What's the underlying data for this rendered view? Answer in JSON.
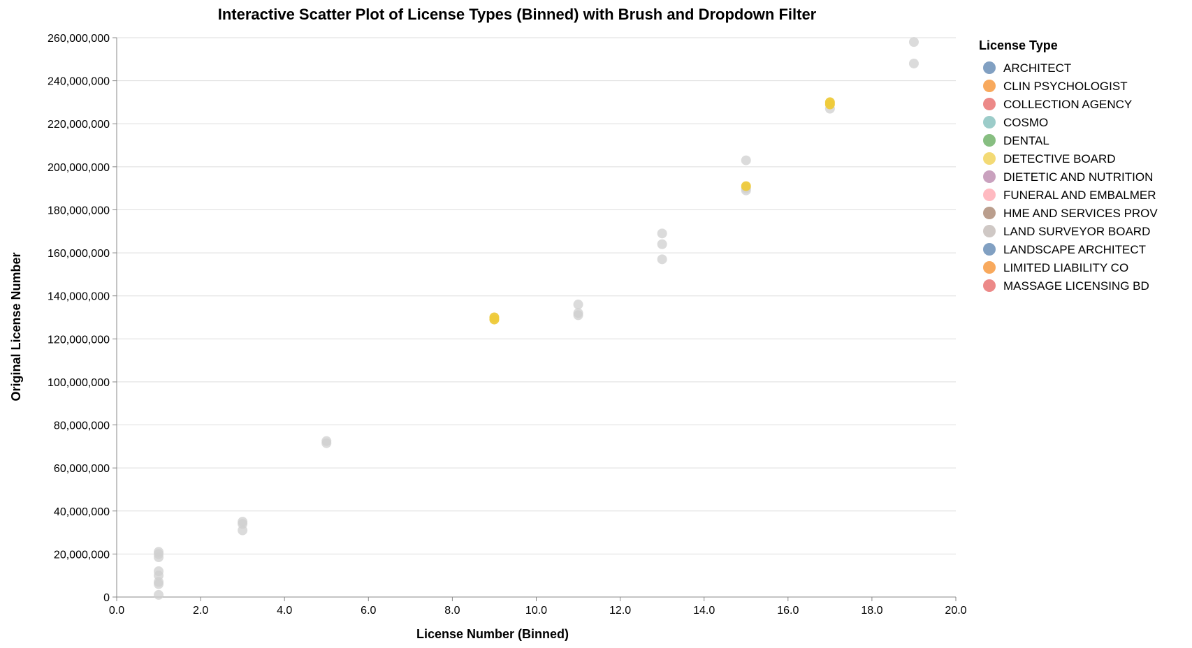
{
  "chart_data": {
    "type": "scatter",
    "title": "Interactive Scatter Plot of License Types (Binned) with Brush and Dropdown Filter",
    "xlabel": "License Number (Binned)",
    "ylabel": "Original License Number",
    "xlim": [
      0,
      20
    ],
    "ylim": [
      0,
      260000000
    ],
    "x_ticks": [
      "0.0",
      "2.0",
      "4.0",
      "6.0",
      "8.0",
      "10.0",
      "12.0",
      "14.0",
      "16.0",
      "18.0",
      "20.0"
    ],
    "y_ticks": [
      "0",
      "20,000,000",
      "40,000,000",
      "60,000,000",
      "80,000,000",
      "100,000,000",
      "120,000,000",
      "140,000,000",
      "160,000,000",
      "180,000,000",
      "200,000,000",
      "220,000,000",
      "240,000,000",
      "260,000,000"
    ],
    "grid": true,
    "legend": {
      "title": "License Type",
      "placement": "right",
      "entries": [
        {
          "label": "ARCHITECT",
          "color": "#4c78a8"
        },
        {
          "label": "CLIN PSYCHOLOGIST",
          "color": "#f58518"
        },
        {
          "label": "COLLECTION AGENCY",
          "color": "#e45756"
        },
        {
          "label": "COSMO",
          "color": "#72b7b2"
        },
        {
          "label": "DENTAL",
          "color": "#54a24b"
        },
        {
          "label": "DETECTIVE BOARD",
          "color": "#eeca3b"
        },
        {
          "label": "DIETETIC AND NUTRITION",
          "color": "#b279a2"
        },
        {
          "label": "FUNERAL AND EMBALMER",
          "color": "#ff9da6"
        },
        {
          "label": "HME AND SERVICES PROV",
          "color": "#9d755d"
        },
        {
          "label": "LAND SURVEYOR BOARD",
          "color": "#bab0ac"
        },
        {
          "label": "LANDSCAPE ARCHITECT",
          "color": "#4c78a8"
        },
        {
          "label": "LIMITED LIABILITY CO",
          "color": "#f58518"
        },
        {
          "label": "MASSAGE LICENSING BD",
          "color": "#e45756"
        }
      ]
    },
    "colors": {
      "unselected": "#cfcfcf",
      "highlight": "#eeca3b"
    },
    "points": [
      {
        "x": 1,
        "y": 1000000,
        "highlight": false
      },
      {
        "x": 1,
        "y": 6000000,
        "highlight": false
      },
      {
        "x": 1,
        "y": 7000000,
        "highlight": false
      },
      {
        "x": 1,
        "y": 10000000,
        "highlight": false
      },
      {
        "x": 1,
        "y": 12000000,
        "highlight": false
      },
      {
        "x": 1,
        "y": 18500000,
        "highlight": false
      },
      {
        "x": 1,
        "y": 20000000,
        "highlight": false
      },
      {
        "x": 1,
        "y": 21000000,
        "highlight": false
      },
      {
        "x": 3,
        "y": 31000000,
        "highlight": false
      },
      {
        "x": 3,
        "y": 34000000,
        "highlight": false
      },
      {
        "x": 3,
        "y": 35000000,
        "highlight": false
      },
      {
        "x": 5,
        "y": 71500000,
        "highlight": false
      },
      {
        "x": 5,
        "y": 72500000,
        "highlight": false
      },
      {
        "x": 9,
        "y": 129000000,
        "highlight": true
      },
      {
        "x": 9,
        "y": 130000000,
        "highlight": true
      },
      {
        "x": 11,
        "y": 131000000,
        "highlight": false
      },
      {
        "x": 11,
        "y": 132000000,
        "highlight": false
      },
      {
        "x": 11,
        "y": 136000000,
        "highlight": false
      },
      {
        "x": 13,
        "y": 157000000,
        "highlight": false
      },
      {
        "x": 13,
        "y": 164000000,
        "highlight": false
      },
      {
        "x": 13,
        "y": 169000000,
        "highlight": false
      },
      {
        "x": 15,
        "y": 189000000,
        "highlight": false
      },
      {
        "x": 15,
        "y": 190000000,
        "highlight": false
      },
      {
        "x": 15,
        "y": 191000000,
        "highlight": true
      },
      {
        "x": 15,
        "y": 203000000,
        "highlight": false
      },
      {
        "x": 17,
        "y": 227000000,
        "highlight": false
      },
      {
        "x": 17,
        "y": 229000000,
        "highlight": true
      },
      {
        "x": 17,
        "y": 230000000,
        "highlight": true
      },
      {
        "x": 19,
        "y": 248000000,
        "highlight": false
      },
      {
        "x": 19,
        "y": 258000000,
        "highlight": false
      }
    ]
  }
}
